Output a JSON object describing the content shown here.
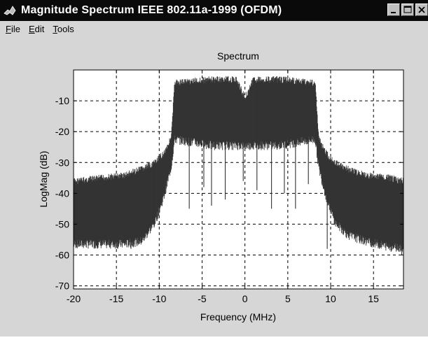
{
  "window": {
    "title": "Magnitude Spectrum IEEE 802.11a-1999 (OFDM)",
    "icon": "matlab-icon"
  },
  "menu": {
    "items": [
      {
        "label": "File",
        "accel": "F",
        "rest": "ile"
      },
      {
        "label": "Edit",
        "accel": "E",
        "rest": "dit"
      },
      {
        "label": "Tools",
        "accel": "T",
        "rest": "ools"
      }
    ]
  },
  "chart_data": {
    "type": "line",
    "title": "Spectrum",
    "xlabel": "Frequency (MHz)",
    "ylabel": "LogMag (dB)",
    "xlim": [
      -20,
      18.5
    ],
    "ylim": [
      -71,
      0
    ],
    "xticks": [
      -20,
      -15,
      -10,
      -5,
      0,
      5,
      10,
      15
    ],
    "yticks": [
      -10,
      -20,
      -30,
      -40,
      -50,
      -60,
      -70
    ],
    "grid": true,
    "series": [
      {
        "color": "#333333",
        "style": "dense-noise",
        "upper_envelope": {
          "x": [
            -20,
            -17,
            -14,
            -12,
            -10.5,
            -9.5,
            -8.6,
            -8.2,
            -4,
            -1,
            0,
            1,
            4,
            8.2,
            8.6,
            9.5,
            10.5,
            12,
            14,
            17,
            18.5
          ],
          "y": [
            -35,
            -34,
            -33,
            -31,
            -29,
            -26,
            -21,
            -3,
            -2,
            -2,
            -8,
            -2,
            -2,
            -3,
            -21,
            -26,
            -29,
            -31,
            -33,
            -34,
            -35
          ]
        },
        "lower_envelope": {
          "x": [
            -20,
            -17,
            -14,
            -12,
            -10.5,
            -9.5,
            -8.6,
            -8.2,
            -4,
            -1,
            0,
            1,
            4,
            8.2,
            8.6,
            9.5,
            10.5,
            12,
            14,
            17,
            18.5
          ],
          "y": [
            -58,
            -58,
            -58,
            -57,
            -51,
            -43,
            -33,
            -24,
            -26,
            -26,
            -26,
            -26,
            -26,
            -24,
            -33,
            -43,
            -51,
            -55,
            -57,
            -59,
            -59
          ]
        },
        "deep_notches": {
          "x": [
            -16.2,
            -13.3,
            -10.6,
            -8.7,
            -6.5,
            -4.8,
            -3.9,
            -2.3,
            -0.2,
            1.4,
            3.1,
            4.6,
            5.9,
            7.4,
            9.6,
            11.7,
            14.9,
            18.3
          ],
          "y": [
            -57,
            -58,
            -51,
            -33,
            -45,
            -38,
            -44,
            -42,
            -36,
            -39,
            -45,
            -40,
            -45,
            -37,
            -58,
            -52,
            -57,
            -60
          ]
        }
      }
    ]
  }
}
